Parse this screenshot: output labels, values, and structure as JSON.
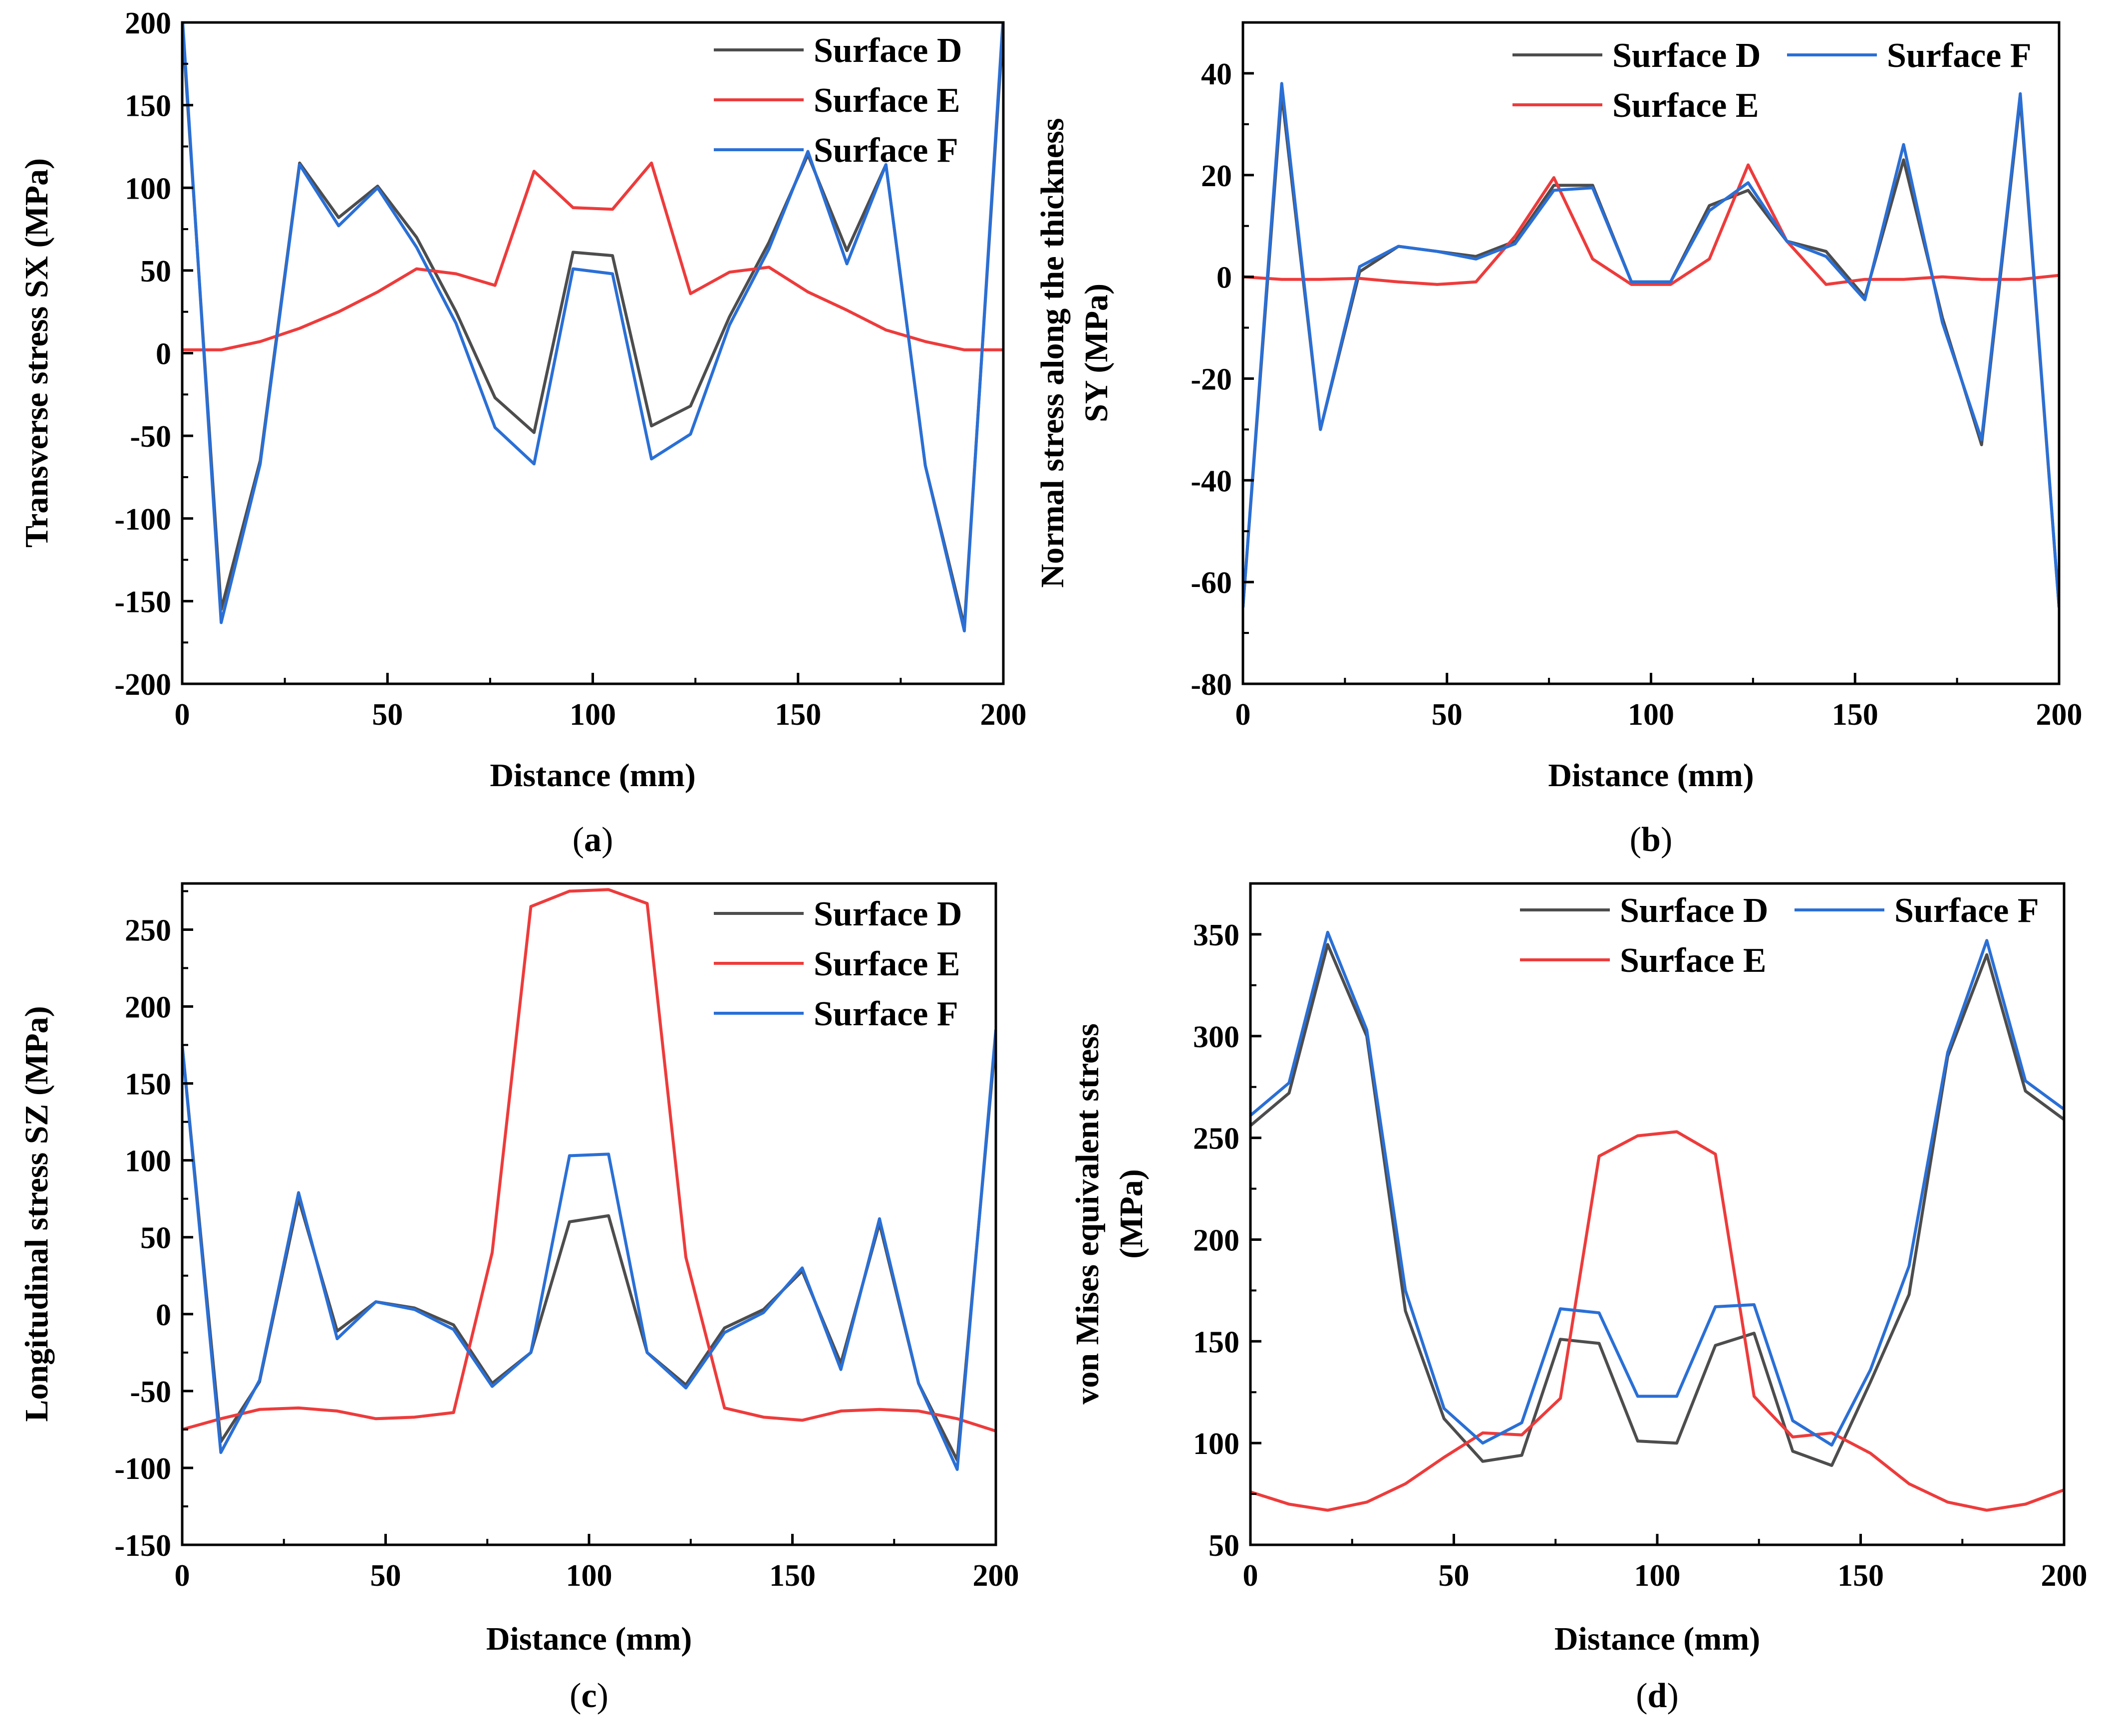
{
  "colors": {
    "surface_d": "#4d4d4d",
    "surface_e": "#ee3b3b",
    "surface_f": "#2a6fd6"
  },
  "chart_data": [
    {
      "type": "line",
      "panel": "(a)",
      "xlabel": "Distance (mm)",
      "ylabel": "Transverse stress SX (MPa)",
      "xlim": [
        0,
        200
      ],
      "ylim": [
        -200,
        200
      ],
      "xticks": [
        0,
        50,
        100,
        150,
        200
      ],
      "yticks": [
        -200,
        -150,
        -100,
        -50,
        0,
        50,
        100,
        150,
        200
      ],
      "legend_position": "top-right",
      "legend_rows": [
        [
          "Surface D"
        ],
        [
          "Surface E"
        ],
        [
          "Surface F"
        ]
      ],
      "series": [
        {
          "name": "Surface D",
          "x": [
            0,
            9.5,
            19,
            28.6,
            38.1,
            47.6,
            57.1,
            66.7,
            76.2,
            85.7,
            95.2,
            104.8,
            114.3,
            123.8,
            133.3,
            142.9,
            152.4,
            161.9,
            171.4,
            181,
            190.5,
            200
          ],
          "y": [
            200,
            -155,
            -65,
            115,
            82,
            101,
            70,
            25,
            -27,
            -48,
            61,
            59,
            -44,
            -32,
            22,
            67,
            120,
            62,
            114,
            -68,
            -165,
            200
          ]
        },
        {
          "name": "Surface E",
          "x": [
            0,
            9.5,
            19,
            28.6,
            38.1,
            47.6,
            57.1,
            66.7,
            76.2,
            85.7,
            95.2,
            104.8,
            114.3,
            123.8,
            133.3,
            142.9,
            152.4,
            161.9,
            171.4,
            181,
            190.5,
            200
          ],
          "y": [
            2,
            2,
            7,
            15,
            25,
            37,
            51,
            48,
            41,
            110,
            88,
            87,
            115,
            36,
            49,
            52,
            37,
            26,
            14,
            7,
            2,
            2
          ]
        },
        {
          "name": "Surface F",
          "x": [
            0,
            9.5,
            19,
            28.6,
            38.1,
            47.6,
            57.1,
            66.7,
            76.2,
            85.7,
            95.2,
            104.8,
            114.3,
            123.8,
            133.3,
            142.9,
            152.4,
            161.9,
            171.4,
            181,
            190.5,
            200
          ],
          "y": [
            205,
            -163,
            -67,
            114,
            77,
            100,
            64,
            18,
            -45,
            -67,
            51,
            48,
            -64,
            -49,
            17,
            63,
            122,
            54,
            114,
            -68,
            -168,
            205
          ]
        }
      ]
    },
    {
      "type": "line",
      "panel": "(b)",
      "xlabel": "Distance (mm)",
      "ylabel_lines": [
        "Normal stress along the thickness",
        "SY (MPa)"
      ],
      "xlim": [
        0,
        200
      ],
      "ylim": [
        -80,
        50
      ],
      "xticks": [
        0,
        50,
        100,
        150,
        200
      ],
      "yticks": [
        -80,
        -60,
        -40,
        -20,
        0,
        20,
        40
      ],
      "legend_position": "top-right",
      "legend_rows": [
        [
          "Surface D",
          "Surface F"
        ],
        [
          "Surface E"
        ]
      ],
      "series": [
        {
          "name": "Surface D",
          "x": [
            0,
            9.5,
            19,
            28.6,
            38.1,
            47.6,
            57.1,
            66.7,
            76.2,
            85.7,
            95.2,
            104.8,
            114.3,
            123.8,
            133.3,
            142.9,
            152.4,
            161.9,
            171.4,
            181,
            190.5,
            200
          ],
          "y": [
            -65,
            36,
            -30,
            1,
            6,
            5,
            4,
            7,
            18,
            18,
            -1,
            -1,
            14,
            17,
            7,
            5,
            -4,
            23,
            -8,
            -33,
            35,
            -65
          ]
        },
        {
          "name": "Surface E",
          "x": [
            0,
            9.5,
            19,
            28.6,
            38.1,
            47.6,
            57.1,
            66.7,
            76.2,
            85.7,
            95.2,
            104.8,
            114.3,
            123.8,
            133.3,
            142.9,
            152.4,
            161.9,
            171.4,
            181,
            190.5,
            200
          ],
          "y": [
            0,
            -0.5,
            -0.5,
            -0.3,
            -1,
            -1.5,
            -1,
            8,
            19.5,
            3.5,
            -1.5,
            -1.5,
            3.5,
            22,
            7,
            -1.5,
            -0.5,
            -0.5,
            0,
            -0.5,
            -0.5,
            0.3
          ]
        },
        {
          "name": "Surface F",
          "x": [
            0,
            9.5,
            19,
            28.6,
            38.1,
            47.6,
            57.1,
            66.7,
            76.2,
            85.7,
            95.2,
            104.8,
            114.3,
            123.8,
            133.3,
            142.9,
            152.4,
            161.9,
            171.4,
            181,
            190.5,
            200
          ],
          "y": [
            -65,
            38,
            -30,
            2,
            6,
            5,
            3.5,
            6.5,
            17,
            17.5,
            -1,
            -1,
            13,
            18.5,
            7,
            4,
            -4.5,
            26,
            -9,
            -32,
            36,
            -65
          ]
        }
      ]
    },
    {
      "type": "line",
      "panel": "(c)",
      "xlabel": "Distance (mm)",
      "ylabel": "Longitudinal stress SZ (MPa)",
      "xlim": [
        0,
        200
      ],
      "ylim": [
        -150,
        280
      ],
      "xticks": [
        0,
        50,
        100,
        150,
        200
      ],
      "yticks": [
        -150,
        -100,
        -50,
        0,
        50,
        100,
        150,
        200,
        250
      ],
      "legend_position": "top-right",
      "legend_rows": [
        [
          "Surface D"
        ],
        [
          "Surface E"
        ],
        [
          "Surface F"
        ]
      ],
      "series": [
        {
          "name": "Surface D",
          "x": [
            0,
            9.5,
            19,
            28.6,
            38.1,
            47.6,
            57.1,
            66.7,
            76.2,
            85.7,
            95.2,
            104.8,
            114.3,
            123.8,
            133.3,
            142.9,
            152.4,
            161.9,
            171.4,
            181,
            190.5,
            200
          ],
          "y": [
            175,
            -83,
            -44,
            75,
            -11,
            8,
            4,
            -7,
            -45,
            -25,
            60,
            64,
            -25,
            -46,
            -9,
            3,
            28,
            -32,
            59,
            -45,
            -95,
            180
          ]
        },
        {
          "name": "Surface E",
          "x": [
            0,
            9.5,
            19,
            28.6,
            38.1,
            47.6,
            57.1,
            66.7,
            76.2,
            85.7,
            95.2,
            104.8,
            114.3,
            123.8,
            133.3,
            142.9,
            152.4,
            161.9,
            171.4,
            181,
            190.5,
            200
          ],
          "y": [
            -75,
            -68,
            -62,
            -61,
            -63,
            -68,
            -67,
            -64,
            40,
            265,
            275,
            276,
            267,
            37,
            -61,
            -67,
            -69,
            -63,
            -62,
            -63,
            -68,
            -76
          ]
        },
        {
          "name": "Surface F",
          "x": [
            0,
            9.5,
            19,
            28.6,
            38.1,
            47.6,
            57.1,
            66.7,
            76.2,
            85.7,
            95.2,
            104.8,
            114.3,
            123.8,
            133.3,
            142.9,
            152.4,
            161.9,
            171.4,
            181,
            190.5,
            200
          ],
          "y": [
            175,
            -90,
            -43,
            79,
            -16,
            8,
            3,
            -10,
            -47,
            -25,
            103,
            104,
            -25,
            -48,
            -12,
            1,
            30,
            -36,
            62,
            -45,
            -101,
            185
          ]
        }
      ]
    },
    {
      "type": "line",
      "panel": "(d)",
      "xlabel": "Distance (mm)",
      "ylabel_lines": [
        "von Mises equivalent stress",
        "(MPa)"
      ],
      "xlim": [
        0,
        200
      ],
      "ylim": [
        50,
        375
      ],
      "xticks": [
        0,
        50,
        100,
        150,
        200
      ],
      "yticks": [
        50,
        100,
        150,
        200,
        250,
        300,
        350
      ],
      "legend_position": "top-right",
      "legend_rows": [
        [
          "Surface D",
          "Surface F"
        ],
        [
          "Surface E"
        ]
      ],
      "series": [
        {
          "name": "Surface D",
          "x": [
            0,
            9.5,
            19,
            28.6,
            38.1,
            47.6,
            57.1,
            66.7,
            76.2,
            85.7,
            95.2,
            104.8,
            114.3,
            123.8,
            133.3,
            142.9,
            152.4,
            161.9,
            171.4,
            181,
            190.5,
            200
          ],
          "y": [
            256,
            272,
            345,
            300,
            165,
            112,
            91,
            94,
            151,
            149,
            101,
            100,
            148,
            154,
            96,
            89,
            130,
            173,
            290,
            340,
            273,
            259
          ]
        },
        {
          "name": "Surface E",
          "x": [
            0,
            9.5,
            19,
            28.6,
            38.1,
            47.6,
            57.1,
            66.7,
            76.2,
            85.7,
            95.2,
            104.8,
            114.3,
            123.8,
            133.3,
            142.9,
            152.4,
            161.9,
            171.4,
            181,
            190.5,
            200
          ],
          "y": [
            76,
            70,
            67,
            71,
            80,
            93,
            105,
            104,
            122,
            241,
            251,
            253,
            242,
            123,
            103,
            105,
            95,
            80,
            71,
            67,
            70,
            77
          ]
        },
        {
          "name": "Surface F",
          "x": [
            0,
            9.5,
            19,
            28.6,
            38.1,
            47.6,
            57.1,
            66.7,
            76.2,
            85.7,
            95.2,
            104.8,
            114.3,
            123.8,
            133.3,
            142.9,
            152.4,
            161.9,
            171.4,
            181,
            190.5,
            200
          ],
          "y": [
            261,
            277,
            351,
            303,
            175,
            117,
            100,
            110,
            166,
            164,
            123,
            123,
            167,
            168,
            111,
            99,
            136,
            187,
            292,
            347,
            278,
            264
          ]
        }
      ]
    }
  ]
}
